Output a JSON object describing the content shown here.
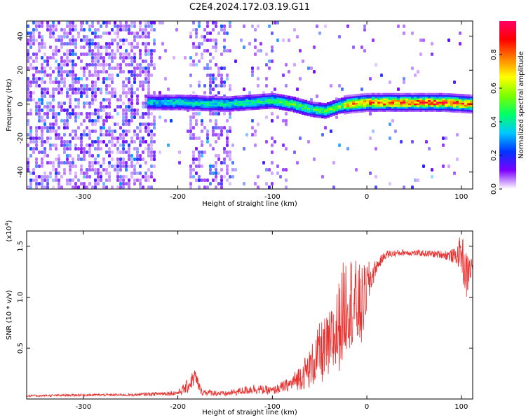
{
  "figure": {
    "title": "C2E4.2024.172.03.19.G11"
  },
  "chart_data": [
    {
      "type": "heatmap",
      "xlabel": "Height of straight line (km)",
      "ylabel": "Frequency (Hz)",
      "xlim": [
        -360,
        112
      ],
      "ylim": [
        -50,
        49
      ],
      "xticks": [
        -300,
        -200,
        -100,
        0,
        100
      ],
      "yticks": [
        -40,
        -20,
        0,
        20,
        40
      ],
      "colorbar": {
        "label": "Normalized spectral amplitude",
        "range": [
          0,
          1
        ],
        "ticks": [
          "0.0",
          "0.2",
          "0.4",
          "0.6",
          "0.8"
        ],
        "colormap": [
          "#ffffff",
          "#7b00ff",
          "#0033ff",
          "#00c8ff",
          "#00ff66",
          "#7cff00",
          "#ffff00",
          "#ff8000",
          "#ff0000",
          "#ff0066"
        ]
      },
      "ridge": {
        "x": [
          -225,
          -200,
          -150,
          -100,
          -80,
          -60,
          -45,
          -30,
          -20,
          0,
          50,
          80,
          112
        ],
        "y": [
          1,
          1,
          0,
          2,
          0,
          -3,
          -4,
          -1,
          0,
          1,
          1,
          1,
          0
        ],
        "peak_amplitude": [
          0.35,
          0.4,
          0.4,
          0.45,
          0.5,
          0.45,
          0.5,
          0.55,
          0.75,
          0.8,
          0.85,
          0.9,
          0.8
        ]
      },
      "grid": false
    },
    {
      "type": "line",
      "xlabel": "Height of straight line (km)",
      "ylabel": "SNR (10 * v/v)",
      "y_multiplier": "(x10",
      "y_multiplier_exp": "4",
      "xlim": [
        -360,
        112
      ],
      "ylim": [
        0,
        16500
      ],
      "xticks": [
        -300,
        -200,
        -100,
        0,
        100
      ],
      "yticks": [
        "0.5",
        "1.0",
        "1.5"
      ],
      "ytick_values": [
        5000,
        10000,
        15000
      ],
      "series": [
        {
          "color": "#e8302e",
          "x": [
            -360,
            -300,
            -250,
            -200,
            -190,
            -182,
            -175,
            -150,
            -120,
            -100,
            -80,
            -60,
            -50,
            -40,
            -30,
            -25,
            -20,
            -15,
            -10,
            -5,
            0,
            10,
            20,
            40,
            60,
            80,
            95,
            100,
            105,
            112
          ],
          "y": [
            300,
            400,
            400,
            600,
            1200,
            2200,
            700,
            500,
            1000,
            800,
            1500,
            3000,
            4500,
            5000,
            7000,
            8500,
            10000,
            9500,
            9000,
            9000,
            11000,
            13000,
            14200,
            14400,
            14300,
            14200,
            14000,
            14500,
            12000,
            13300
          ],
          "noise_amplitude": [
            100,
            120,
            120,
            250,
            700,
            900,
            350,
            250,
            500,
            400,
            700,
            2000,
            3000,
            3500,
            4500,
            5000,
            5000,
            4500,
            4500,
            4000,
            2500,
            600,
            400,
            300,
            300,
            400,
            800,
            2000,
            2500,
            700
          ]
        }
      ],
      "grid": false
    }
  ]
}
